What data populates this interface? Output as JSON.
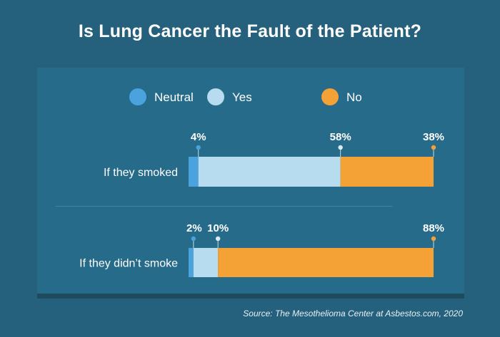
{
  "title": "Is Lung Cancer the Fault of the Patient?",
  "source": "Source: The Mesothelioma Center at Asbestos.com, 2020",
  "colors": {
    "neutral": "#4aa3dc",
    "yes": "#b8dcef",
    "no": "#f4a236",
    "background": "#25617c",
    "panel": "#266b89"
  },
  "chart_data": {
    "type": "bar",
    "orientation": "horizontal",
    "stacked": true,
    "categories": [
      "If they smoked",
      "If they didn’t smoke"
    ],
    "series": [
      {
        "name": "Neutral",
        "values": [
          4,
          2
        ],
        "labels": [
          "4%",
          "2%"
        ]
      },
      {
        "name": "Yes",
        "values": [
          58,
          10
        ],
        "labels": [
          "58%",
          "10%"
        ]
      },
      {
        "name": "No",
        "values": [
          38,
          88
        ],
        "labels": [
          "38%",
          "88%"
        ]
      }
    ],
    "legend": "top",
    "grid": false,
    "xlim": [
      0,
      100
    ]
  }
}
